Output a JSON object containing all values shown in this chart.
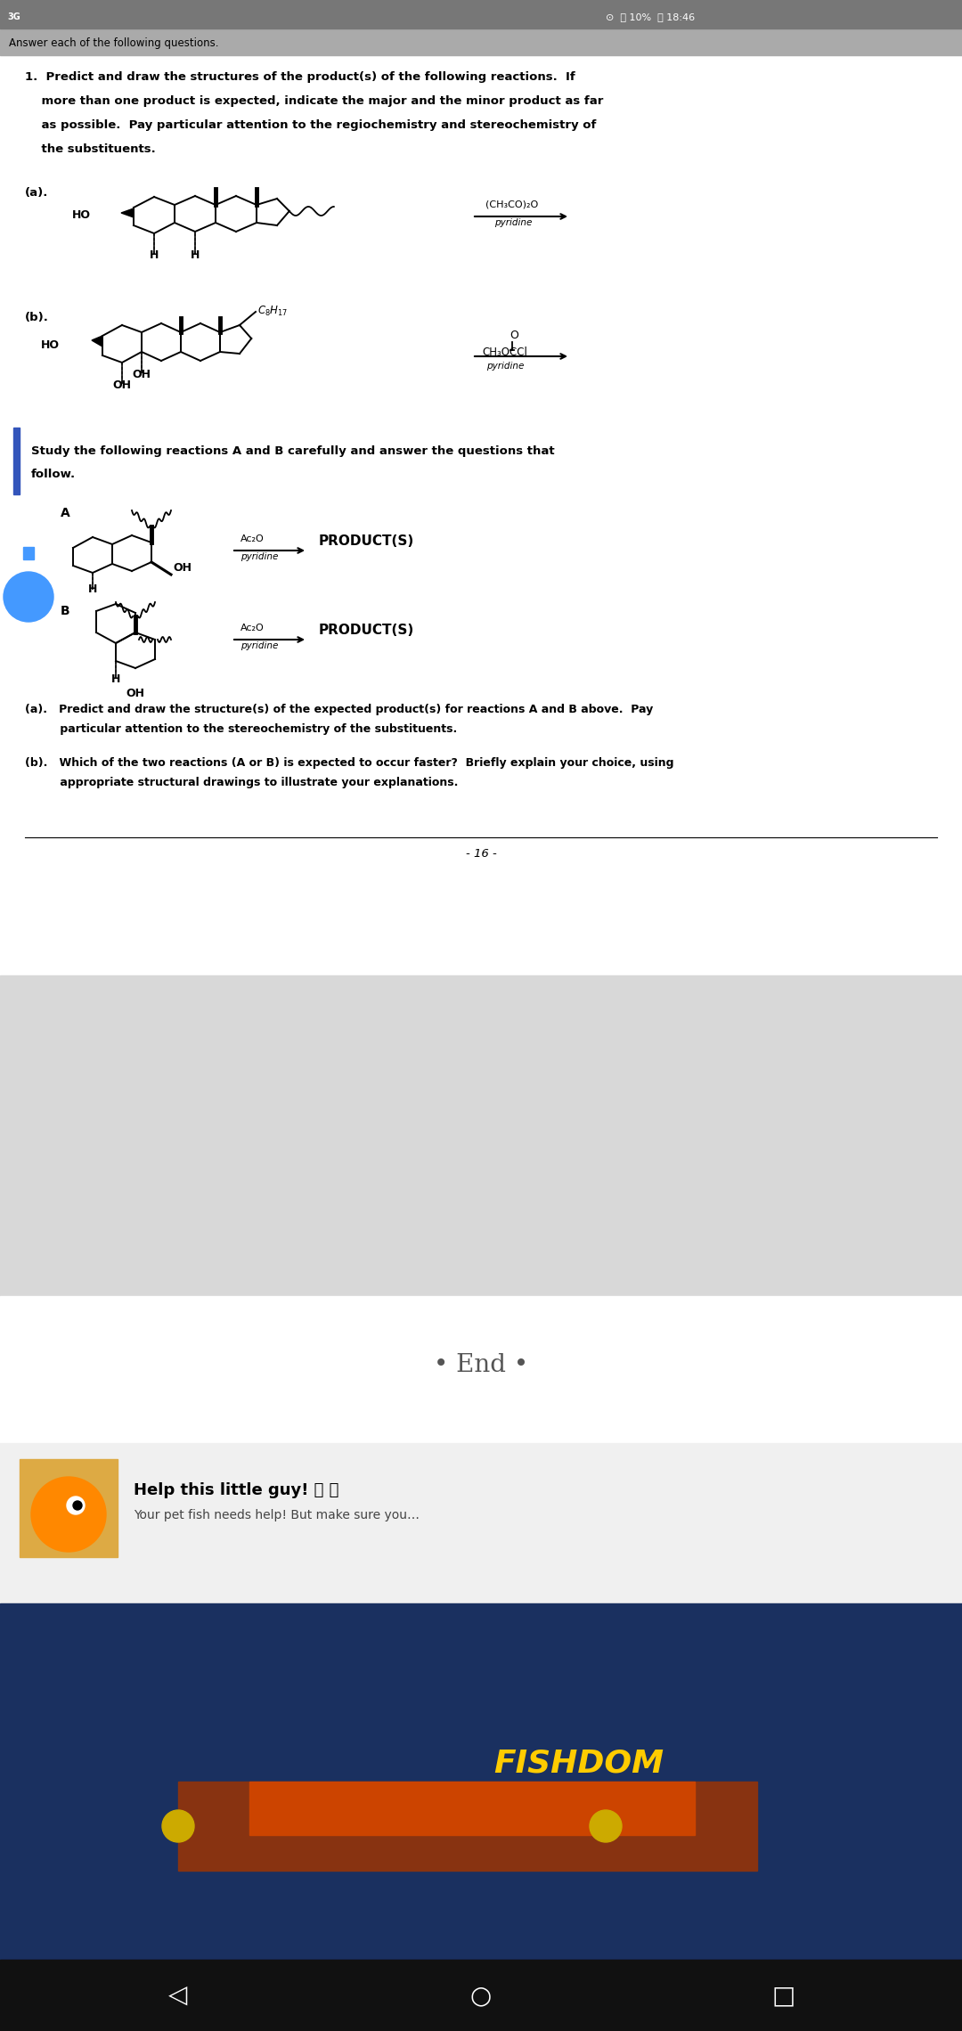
{
  "bg_color": "#ffffff",
  "header_bg": "#aaaaaa",
  "status_bg": "#888888",
  "q1_lines": [
    "1.  Predict and draw the structures of the product(s) of the following reactions.  If",
    "    more than one product is expected, indicate the major and the minor product as far",
    "    as possible.  Pay particular attention to the regiochemistry and stereochemistry of",
    "    the substituents."
  ],
  "label_a": "(a).",
  "label_b": "(b).",
  "reagent_a_line1": "(CH₃CO)₂O",
  "reagent_a_line2": "pyridine",
  "reagent_b_line1": "CH₃OCCl",
  "reagent_b_line2": "pyridine",
  "q2_line1": "Study the following reactions A and B carefully and answer the questions that",
  "q2_line2": "follow.",
  "label_A": "A",
  "label_B": "B",
  "reagent_Ac2O": "Ac₂O",
  "reagent_pyr": "pyridine",
  "product_text": "PRODUCT(S)",
  "qa_lines": [
    "(a).   Predict and draw the structure(s) of the expected product(s) for reactions A and B above.  Pay",
    "         particular attention to the stereochemistry of the substituents."
  ],
  "qb_lines": [
    "(b).   Which of the two reactions (A or B) is expected to occur faster?  Briefly explain your choice, using",
    "         appropriate structural drawings to illustrate your explanations."
  ],
  "page_num": "- 16 -",
  "gray_section_color": "#d8d8d8",
  "end_text": "End",
  "help_bg": "#f0f0f0",
  "help_title": "Help this little guy!",
  "help_sub": "Your pet fish needs help! But make sure you…",
  "fishdom_bg": "#1a3060",
  "fishdom_text": "FISHDOM",
  "nav_bg": "#111111",
  "blue_bar_color": "#3355bb",
  "flask_color": "#4499ff"
}
